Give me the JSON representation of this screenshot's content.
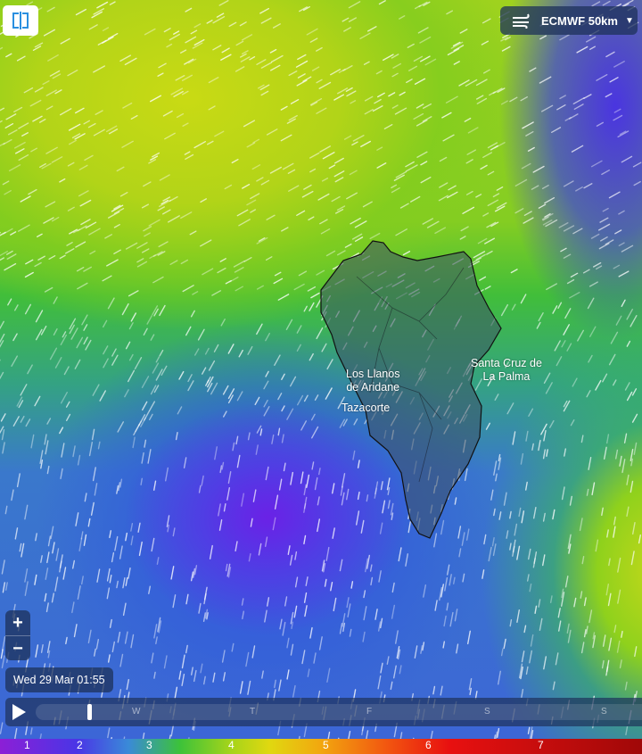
{
  "app": {
    "logo_icon": "windy-logo-icon"
  },
  "model_selector": {
    "label": "ECMWF 50km",
    "icon": "wind-icon"
  },
  "places": [
    {
      "name": "Los Llanos\nde Aridane"
    },
    {
      "name": "Tazacorte"
    },
    {
      "name": "Santa Cruz de\nLa Palma"
    }
  ],
  "zoom": {
    "in_label": "+",
    "out_label": "−"
  },
  "datetime": "Wed 29 Mar 01:55",
  "timeline": {
    "days": [
      "W",
      "T",
      "F",
      "S",
      "S"
    ],
    "progress": 0.09
  },
  "legend": {
    "values": [
      "1",
      "2",
      "3",
      "4",
      "5",
      "6",
      "7"
    ]
  },
  "colors": {
    "low": "#6a22e6",
    "mid": "#3cc23a",
    "high": "#e0d810"
  }
}
